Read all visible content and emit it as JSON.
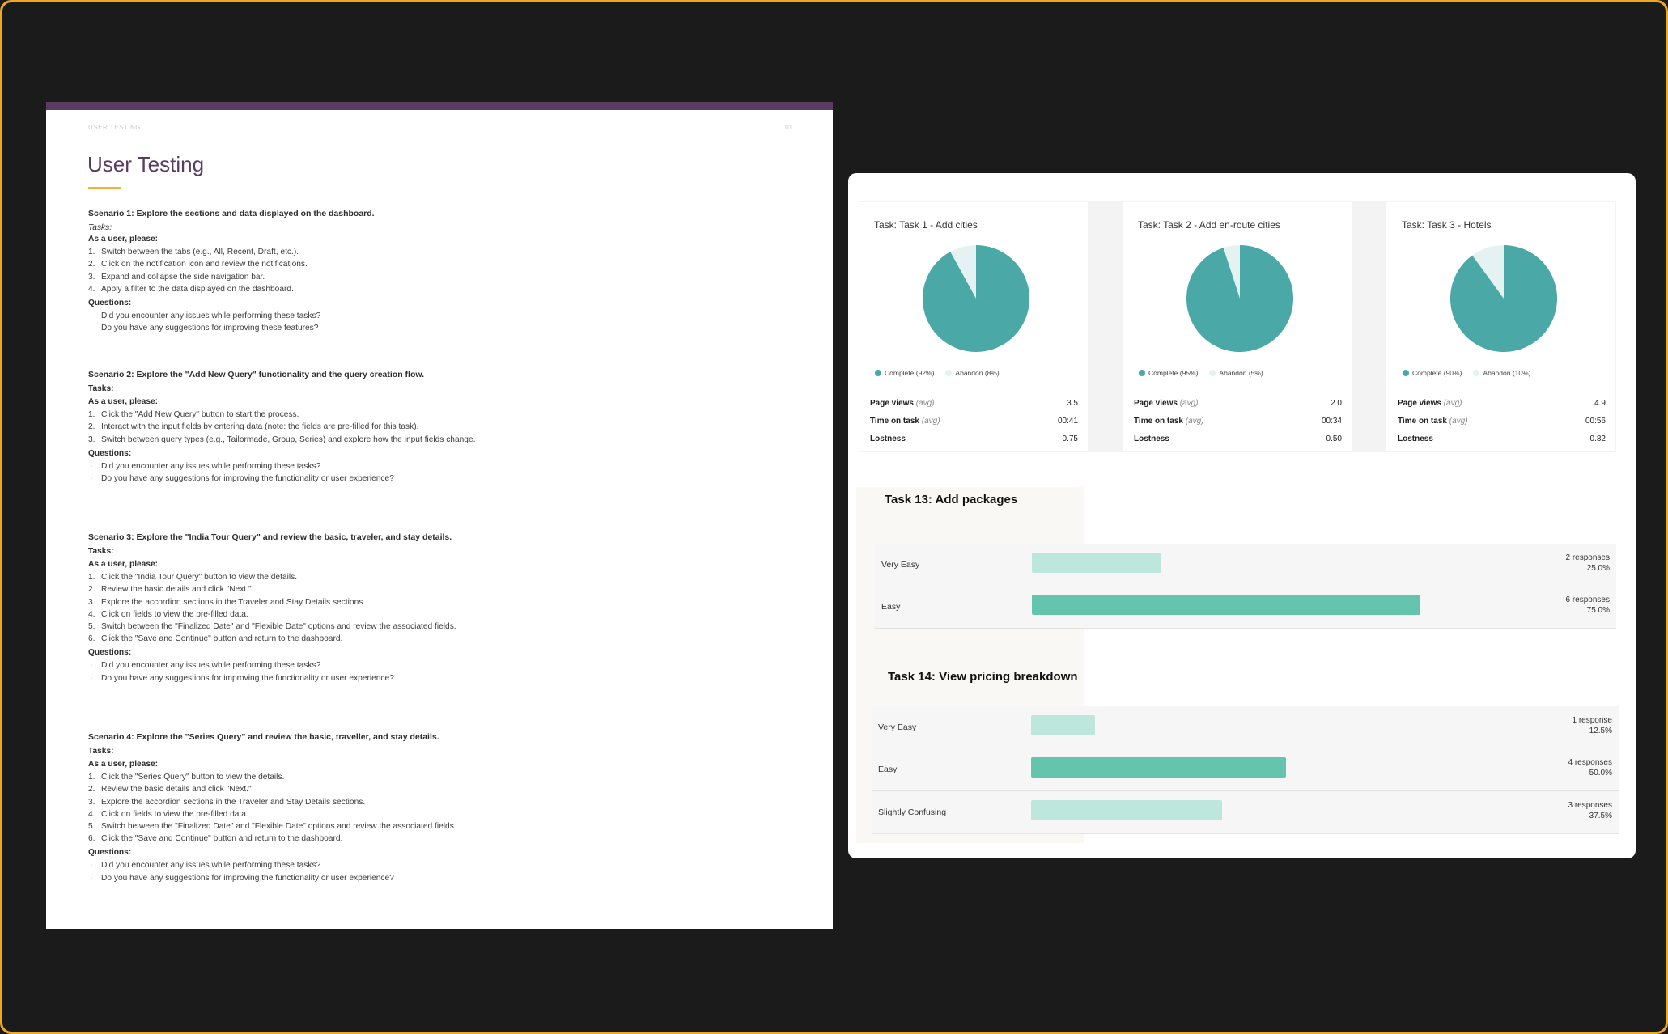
{
  "doc": {
    "header_label": "USER TESTING",
    "page_number": "01",
    "title": "User Testing",
    "scenarios": [
      {
        "title": "Scenario 1: Explore the sections and data displayed on the dashboard.",
        "tasks_label": "Tasks:",
        "intro": "As a user, please:",
        "steps": [
          "Switch between the tabs (e.g., All, Recent, Draft, etc.).",
          "Click on the notification icon and review the notifications.",
          "Expand and collapse the side navigation bar.",
          "Apply a filter to the data displayed on the dashboard."
        ],
        "questions_label": "Questions:",
        "questions": [
          "Did you encounter any issues while performing these tasks?",
          "Do you have any suggestions for improving these features?"
        ]
      },
      {
        "title": "Scenario 2: Explore the \"Add New Query\" functionality and the query creation flow.",
        "tasks_label": "Tasks:",
        "intro": "As a user, please:",
        "steps": [
          "Click the \"Add New Query\" button to start the process.",
          "Interact with the input fields by entering data (note: the fields are pre-filled for this task).",
          "Switch between query types (e.g., Tailormade, Group, Series) and explore how the input fields change."
        ],
        "questions_label": "Questions:",
        "questions": [
          "Did you encounter any issues while performing these tasks?",
          "Do you have any suggestions for improving the functionality or user experience?"
        ]
      },
      {
        "title": "Scenario 3: Explore the \"India Tour Query\" and review the basic, traveler, and stay details.",
        "tasks_label": "Tasks:",
        "intro": "As a user, please:",
        "steps": [
          "Click the \"India Tour Query\" button to view the details.",
          "Review the basic details and click \"Next.\"",
          "Explore the accordion sections in the Traveler and Stay Details sections.",
          "Click on fields to view the pre-filled data.",
          "Switch between the \"Finalized Date\" and \"Flexible Date\" options and review the associated fields.",
          "Click the \"Save and Continue\" button and return to the dashboard."
        ],
        "questions_label": "Questions:",
        "questions": [
          "Did you encounter any issues while performing these tasks?",
          "Do you have any suggestions for improving the functionality or user experience?"
        ]
      },
      {
        "title": "Scenario 4: Explore the \"Series Query\" and review the basic, traveller, and stay details.",
        "tasks_label": "Tasks:",
        "intro": "As a user, please:",
        "steps": [
          "Click the \"Series Query\" button to view the details.",
          "Review the basic details and click \"Next.\"",
          "Explore the accordion sections in the Traveler and Stay Details sections.",
          "Click on fields to view the pre-filled data.",
          "Switch between the \"Finalized Date\" and \"Flexible Date\" options and review the associated fields.",
          "Click the \"Save and Continue\" button and return to the dashboard."
        ],
        "questions_label": "Questions:",
        "questions": [
          "Did you encounter any issues while performing these tasks?",
          "Do you have any suggestions for improving the functionality or user experience?"
        ]
      }
    ]
  },
  "colors": {
    "complete": "#4aa8a6",
    "abandon": "#e4f3f1",
    "bar_light": "#bde6dd",
    "bar_dark": "#65c4ae",
    "doc_accent": "#5c3b63",
    "rule": "#f2b233"
  },
  "chart_data": [
    {
      "type": "pie",
      "title": "Task: Task 1 - Add cities",
      "slices": [
        {
          "label": "Complete (92%)",
          "value": 92
        },
        {
          "label": "Abandon (8%)",
          "value": 8
        }
      ],
      "metrics": [
        {
          "label": "Page views",
          "qualifier": "(avg)",
          "value": "3.5"
        },
        {
          "label": "Time on task",
          "qualifier": "(avg)",
          "value": "00:41"
        },
        {
          "label": "Lostness",
          "qualifier": "",
          "value": "0.75"
        }
      ]
    },
    {
      "type": "pie",
      "title": "Task: Task 2 - Add en-route cities",
      "slices": [
        {
          "label": "Complete (95%)",
          "value": 95
        },
        {
          "label": "Abandon (5%)",
          "value": 5
        }
      ],
      "metrics": [
        {
          "label": "Page views",
          "qualifier": "(avg)",
          "value": "2.0"
        },
        {
          "label": "Time on task",
          "qualifier": "(avg)",
          "value": "00:34"
        },
        {
          "label": "Lostness",
          "qualifier": "",
          "value": "0.50"
        }
      ]
    },
    {
      "type": "pie",
      "title": "Task: Task 3 - Hotels",
      "slices": [
        {
          "label": "Complete (90%)",
          "value": 90
        },
        {
          "label": "Abandon (10%)",
          "value": 10
        }
      ],
      "metrics": [
        {
          "label": "Page views",
          "qualifier": "(avg)",
          "value": "4.9"
        },
        {
          "label": "Time on task",
          "qualifier": "(avg)",
          "value": "00:56"
        },
        {
          "label": "Lostness",
          "qualifier": "",
          "value": "0.82"
        }
      ]
    },
    {
      "type": "bar",
      "title": "Task 13: Add packages",
      "categories": [
        "Very Easy",
        "Easy"
      ],
      "values": [
        25.0,
        75.0
      ],
      "labels": [
        {
          "responses": "2 responses",
          "percent": "25.0%"
        },
        {
          "responses": "6 responses",
          "percent": "75.0%"
        }
      ]
    },
    {
      "type": "bar",
      "title": "Task 14: View pricing breakdown",
      "categories": [
        "Very Easy",
        "Easy",
        "Slightly Confusing"
      ],
      "values": [
        12.5,
        50.0,
        37.5
      ],
      "labels": [
        {
          "responses": "1 response",
          "percent": "12.5%"
        },
        {
          "responses": "4 responses",
          "percent": "50.0%"
        },
        {
          "responses": "3 responses",
          "percent": "37.5%"
        }
      ]
    }
  ]
}
